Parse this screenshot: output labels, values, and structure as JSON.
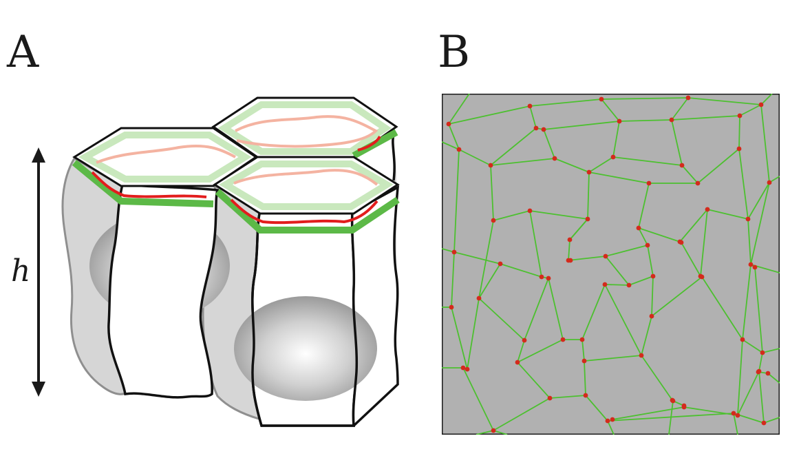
{
  "panels": {
    "a": {
      "label": "A",
      "height_symbol": "h"
    },
    "b": {
      "label": "B"
    }
  },
  "colors": {
    "cell_gray": "#b1b1b1",
    "edge_green": "#4cc02f",
    "vertex_red": "#d42a1c",
    "junction_red": "#e21d1d",
    "band_green": "#5cb947",
    "band_green_light": "#c9e8bd",
    "junction_pink": "#f4b3a1"
  }
}
